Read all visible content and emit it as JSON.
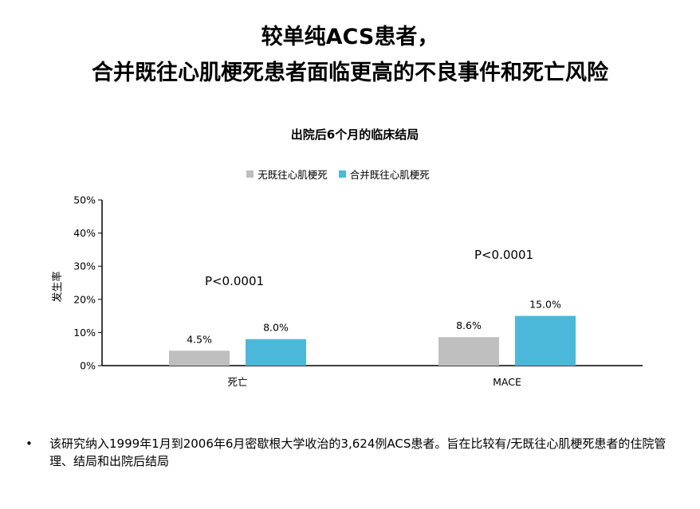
{
  "slide": {
    "headline_line1": "较单纯ACS患者，",
    "headline_line2": "合并既往心肌梗死患者面临更高的不良事件和死亡风险",
    "footnote_bullet": "•",
    "footnote": "该研究纳入1999年1月到2006年6月密歇根大学收治的3,624例ACS患者。旨在比较有/无既往心肌梗死患者的住院管理、结局和出院后结局"
  },
  "chart_data": {
    "type": "bar",
    "title": "出院后6个月的临床结局",
    "ylabel": "发生率",
    "xlabel": "",
    "ylim": [
      0,
      50
    ],
    "yticks": [
      "0%",
      "10%",
      "20%",
      "30%",
      "40%",
      "50%"
    ],
    "categories": [
      "死亡",
      "MACE"
    ],
    "series": [
      {
        "name": "无既往心肌梗死",
        "color": "#bfbfbf",
        "values": [
          4.5,
          8.6
        ],
        "labels": [
          "4.5%",
          "8.6%"
        ]
      },
      {
        "name": "合并既往心肌梗死",
        "color": "#4bb8da",
        "values": [
          8.0,
          15.0
        ],
        "labels": [
          "8.0%",
          "15.0%"
        ]
      }
    ],
    "annotations": [
      "P<0.0001",
      "P<0.0001"
    ],
    "legend_position": "top-center",
    "grid": false
  }
}
